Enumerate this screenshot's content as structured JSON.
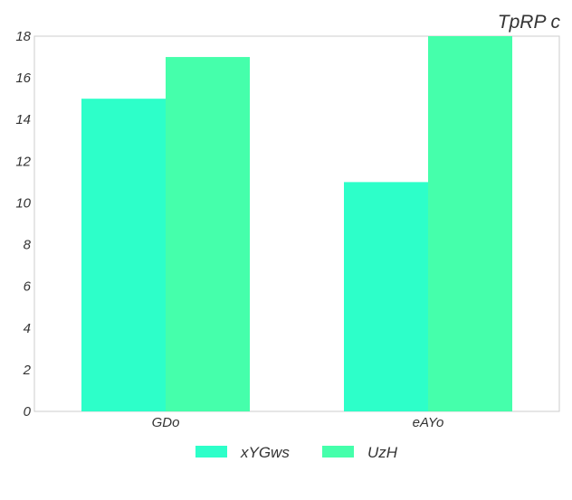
{
  "chart_data": {
    "type": "bar",
    "title": "TpRP c",
    "xlabel": "",
    "ylabel": "",
    "categories": [
      "GDo",
      "eAYo"
    ],
    "series": [
      {
        "name": "xYGws",
        "values": [
          15,
          11
        ],
        "color": "#2dffc9"
      },
      {
        "name": "UzH",
        "values": [
          17,
          18
        ],
        "color": "#45ffab"
      }
    ],
    "ylim": [
      0,
      18
    ],
    "yticks": [
      0,
      2,
      4,
      6,
      8,
      10,
      12,
      14,
      16,
      18
    ],
    "grid": false,
    "legend_position": "bottom-center"
  }
}
